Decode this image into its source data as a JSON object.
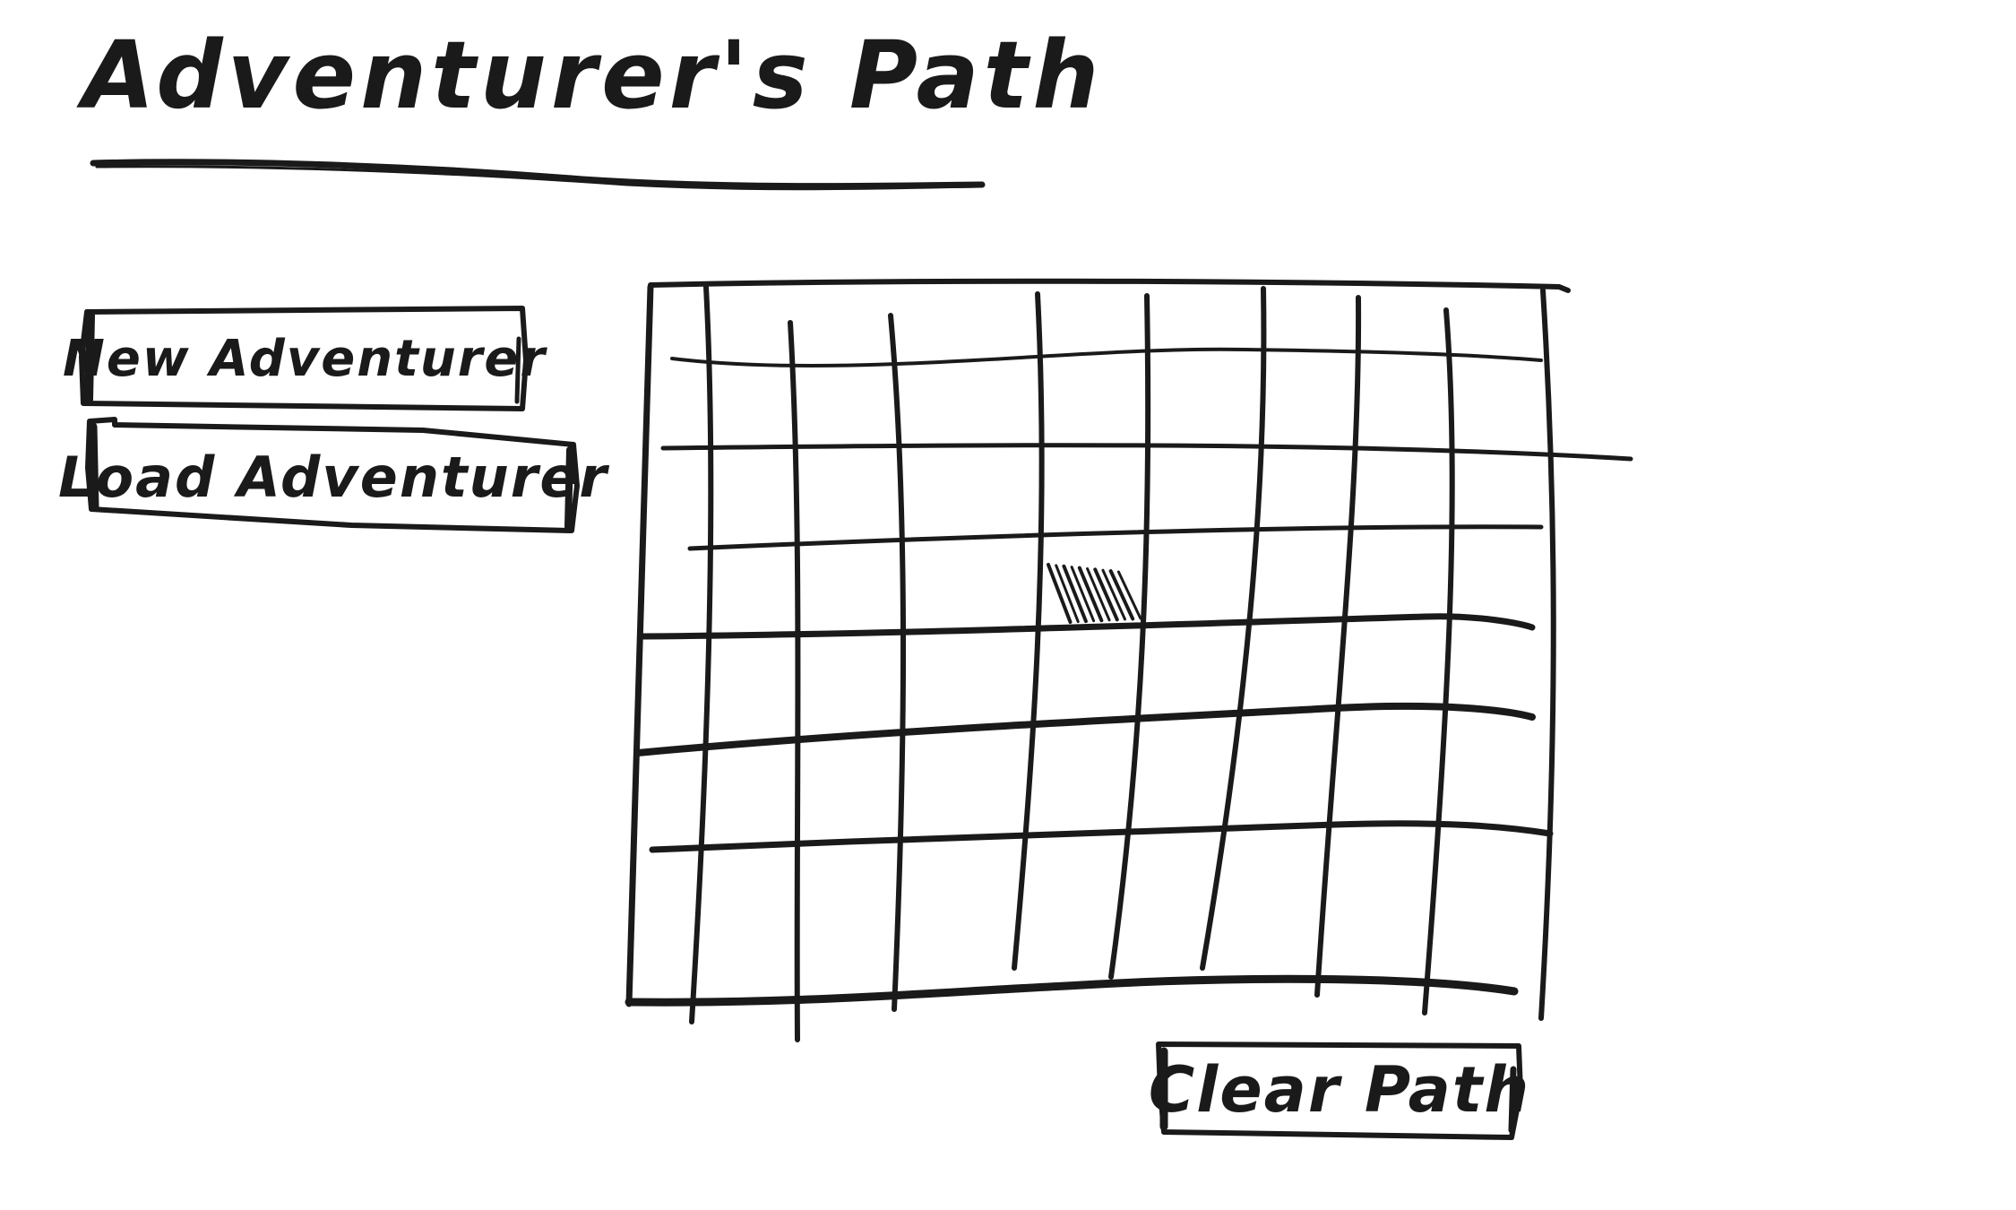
{
  "app": {
    "title": "Adventurer's Path"
  },
  "actions": {
    "new_label": "New Adventurer",
    "load_label": "Load Adventurer",
    "clear_label": "Clear Path"
  },
  "grid": {
    "columns": 9,
    "rows": 7,
    "marked_cells": [
      {
        "row": 3,
        "col": 4
      }
    ]
  },
  "colors": {
    "ink": "#1a1a1a",
    "background": "#ffffff"
  }
}
